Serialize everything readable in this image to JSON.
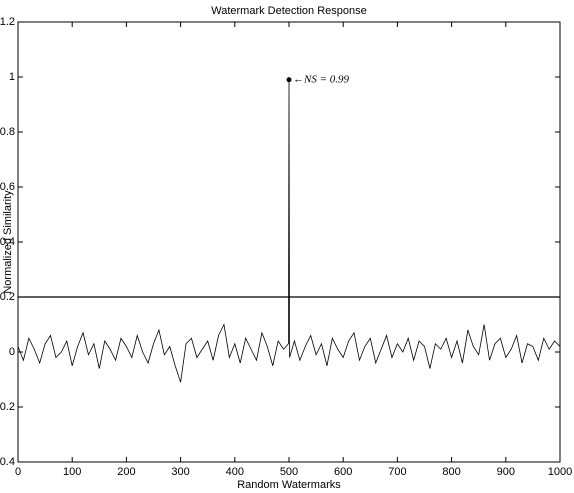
{
  "chart_data": {
    "type": "line",
    "title": "Watermark Detection Response",
    "xlabel": "Random Watermarks",
    "ylabel": "Normalized Similarity",
    "xlim": [
      0,
      1000
    ],
    "ylim": [
      -0.4,
      1.2
    ],
    "xticks": [
      0,
      100,
      200,
      300,
      400,
      500,
      600,
      700,
      800,
      900,
      1000
    ],
    "yticks": [
      -0.4,
      -0.2,
      0,
      0.2,
      0.4,
      0.6,
      0.8,
      1,
      1.2
    ],
    "threshold": 0.2,
    "annotation": "←NS = 0.99",
    "peak": {
      "x": 500,
      "y": 0.99
    },
    "x": [
      0,
      10,
      20,
      30,
      40,
      50,
      60,
      70,
      80,
      90,
      100,
      110,
      120,
      130,
      140,
      150,
      160,
      170,
      180,
      190,
      200,
      210,
      220,
      230,
      240,
      250,
      260,
      270,
      280,
      290,
      300,
      310,
      320,
      330,
      340,
      350,
      360,
      370,
      380,
      390,
      400,
      410,
      420,
      430,
      440,
      450,
      460,
      470,
      480,
      490,
      499,
      500,
      501,
      510,
      520,
      530,
      540,
      550,
      560,
      570,
      580,
      590,
      600,
      610,
      620,
      630,
      640,
      650,
      660,
      670,
      680,
      690,
      700,
      710,
      720,
      730,
      740,
      750,
      760,
      770,
      780,
      790,
      800,
      810,
      820,
      830,
      840,
      850,
      860,
      870,
      880,
      890,
      900,
      910,
      920,
      930,
      940,
      950,
      960,
      970,
      980,
      990,
      1000
    ],
    "series": [
      {
        "color": "#000000",
        "values": [
          0.02,
          -0.03,
          0.05,
          0.01,
          -0.04,
          0.03,
          0.06,
          -0.02,
          0.0,
          0.04,
          -0.05,
          0.02,
          0.07,
          -0.01,
          0.03,
          -0.06,
          0.04,
          0.01,
          -0.03,
          0.05,
          0.02,
          -0.02,
          0.06,
          0.0,
          -0.04,
          0.03,
          0.08,
          -0.01,
          0.02,
          -0.05,
          -0.11,
          0.03,
          0.05,
          -0.02,
          0.01,
          0.04,
          -0.03,
          0.06,
          0.1,
          -0.02,
          0.03,
          -0.04,
          0.05,
          0.01,
          -0.03,
          0.07,
          0.02,
          -0.05,
          0.04,
          0.01,
          0.03,
          0.99,
          -0.02,
          0.04,
          -0.03,
          0.02,
          0.06,
          -0.01,
          0.03,
          -0.05,
          0.05,
          0.01,
          -0.02,
          0.04,
          0.07,
          -0.03,
          0.02,
          0.05,
          -0.04,
          0.01,
          0.06,
          -0.02,
          0.03,
          0.0,
          0.05,
          -0.03,
          0.04,
          0.02,
          -0.06,
          0.03,
          0.01,
          0.05,
          -0.02,
          0.04,
          -0.04,
          0.08,
          0.02,
          -0.01,
          0.1,
          -0.03,
          0.03,
          0.05,
          -0.02,
          0.01,
          0.06,
          -0.04,
          0.03,
          0.02,
          -0.03,
          0.05,
          0.01,
          0.04,
          0.02
        ]
      }
    ]
  }
}
